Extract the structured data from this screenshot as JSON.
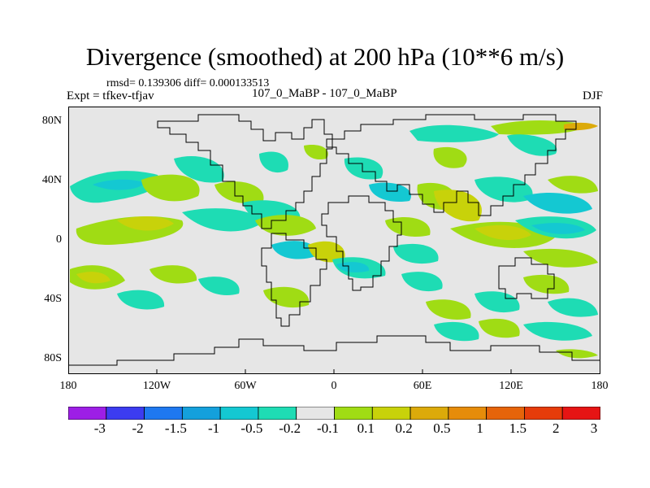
{
  "title": "Divergence (smoothed) at 200 hPa (10**6 m/s)",
  "stats": "rmsd= 0.139306 diff= 0.000133513",
  "experiment": "Expt = tfkev-tfjav",
  "comparison": "107_0_MaBP - 107_0_MaBP",
  "season": "DJF",
  "lat_labels": [
    "80N",
    "40N",
    "0",
    "40S",
    "80S"
  ],
  "lon_labels": [
    "180",
    "120W",
    "60W",
    "0",
    "60E",
    "120E",
    "180"
  ],
  "colorbar": {
    "labels": [
      "-3",
      "-2",
      "-1.5",
      "-1",
      "-0.5",
      "-0.2",
      "-0.1",
      "0.1",
      "0.2",
      "0.5",
      "1",
      "1.5",
      "2",
      "3"
    ],
    "colors": [
      "#9d1ee6",
      "#3c3cf0",
      "#1e78f0",
      "#14a0dc",
      "#14c8d2",
      "#1edcb4",
      "#e6e6e6",
      "#a0dc14",
      "#c8d20a",
      "#dcaa0a",
      "#e68c0a",
      "#e6640a",
      "#e63c0a",
      "#e61414"
    ]
  },
  "map": {
    "background": "#e6e6e6",
    "features": [
      {
        "name": "tropical-east-pacific-band",
        "color": "#1edcb4"
      },
      {
        "name": "tropical-atlantic-band",
        "color": "#a0dc14"
      },
      {
        "name": "indian-ocean-band",
        "color": "#c8d20a"
      },
      {
        "name": "western-pacific-band",
        "color": "#14c8d2"
      },
      {
        "name": "southern-midlatitude-band",
        "color": "#a0dc14"
      }
    ]
  }
}
